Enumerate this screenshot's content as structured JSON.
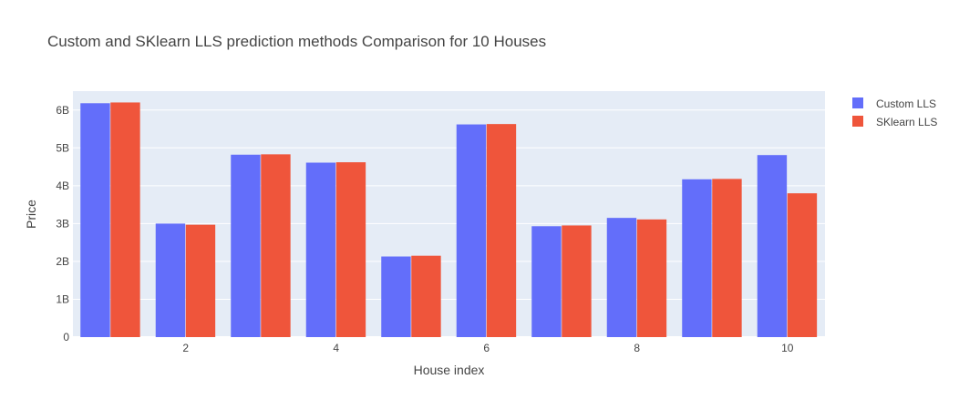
{
  "chart_data": {
    "type": "bar",
    "title": "Custom and SKlearn LLS prediction methods Comparison for 10 Houses",
    "xlabel": "House index",
    "ylabel": "Price",
    "x": [
      1,
      2,
      3,
      4,
      5,
      6,
      7,
      8,
      9,
      10
    ],
    "x_tick_labels": [
      "2",
      "4",
      "6",
      "8",
      "10"
    ],
    "x_tick_values": [
      2,
      4,
      6,
      8,
      10
    ],
    "y_tick_labels": [
      "0",
      "1B",
      "2B",
      "3B",
      "4B",
      "5B",
      "6B"
    ],
    "y_tick_values": [
      0,
      1000000000,
      2000000000,
      3000000000,
      4000000000,
      5000000000,
      6000000000
    ],
    "ylim": [
      0,
      6500000000
    ],
    "xlim": [
      0.5,
      10.5
    ],
    "grid": true,
    "legend_position": "top-right",
    "series": [
      {
        "name": "Custom LLS",
        "color": "#636efa",
        "values": [
          6180000000,
          3000000000,
          4820000000,
          4610000000,
          2130000000,
          5620000000,
          2930000000,
          3150000000,
          4170000000,
          4810000000
        ]
      },
      {
        "name": "SKlearn LLS",
        "color": "#ef553b",
        "values": [
          6200000000,
          2970000000,
          4830000000,
          4620000000,
          2150000000,
          5630000000,
          2950000000,
          3110000000,
          4180000000,
          3800000000
        ]
      }
    ],
    "plot_background": "#e5ecf6"
  }
}
